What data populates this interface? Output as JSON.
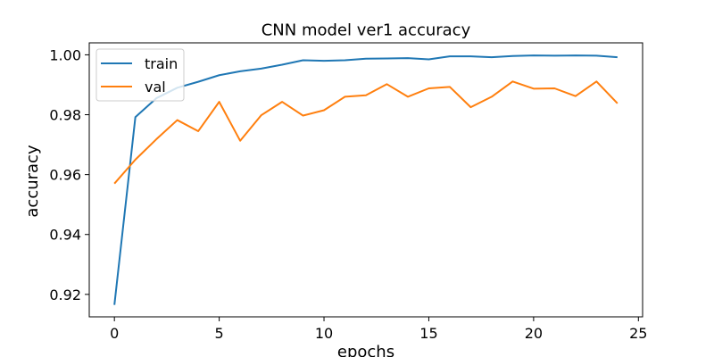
{
  "chart_data": {
    "type": "line",
    "title": "CNN model ver1 accuracy",
    "xlabel": "epochs",
    "ylabel": "accuracy",
    "xlim": [
      -1.2,
      25.2
    ],
    "ylim": [
      0.9125,
      1.004
    ],
    "xticks": [
      0,
      5,
      10,
      15,
      20,
      25
    ],
    "yticks": [
      0.92,
      0.94,
      0.96,
      0.98,
      1.0
    ],
    "xtick_labels": [
      "0",
      "5",
      "10",
      "15",
      "20",
      "25"
    ],
    "ytick_labels": [
      "0.92",
      "0.94",
      "0.96",
      "0.98",
      "1.00"
    ],
    "legend_position": "upper-left",
    "x": [
      0,
      1,
      2,
      3,
      4,
      5,
      6,
      7,
      8,
      9,
      10,
      11,
      12,
      13,
      14,
      15,
      16,
      17,
      18,
      19,
      20,
      21,
      22,
      23,
      24
    ],
    "series": [
      {
        "name": "train",
        "color": "#1f77b4",
        "values": [
          0.9165,
          0.9792,
          0.9855,
          0.989,
          0.991,
          0.9932,
          0.9945,
          0.9954,
          0.9967,
          0.9982,
          0.998,
          0.9982,
          0.9987,
          0.9988,
          0.9989,
          0.9985,
          0.9995,
          0.9995,
          0.9992,
          0.9996,
          0.9998,
          0.9997,
          0.9998,
          0.9997,
          0.9992
        ]
      },
      {
        "name": "val",
        "color": "#ff7f0e",
        "values": [
          0.957,
          0.965,
          0.9718,
          0.9782,
          0.9745,
          0.9843,
          0.9713,
          0.9798,
          0.9843,
          0.9797,
          0.9815,
          0.986,
          0.9865,
          0.9902,
          0.986,
          0.9888,
          0.9893,
          0.9825,
          0.986,
          0.9911,
          0.9887,
          0.9888,
          0.9862,
          0.9911,
          0.9838
        ]
      }
    ]
  }
}
